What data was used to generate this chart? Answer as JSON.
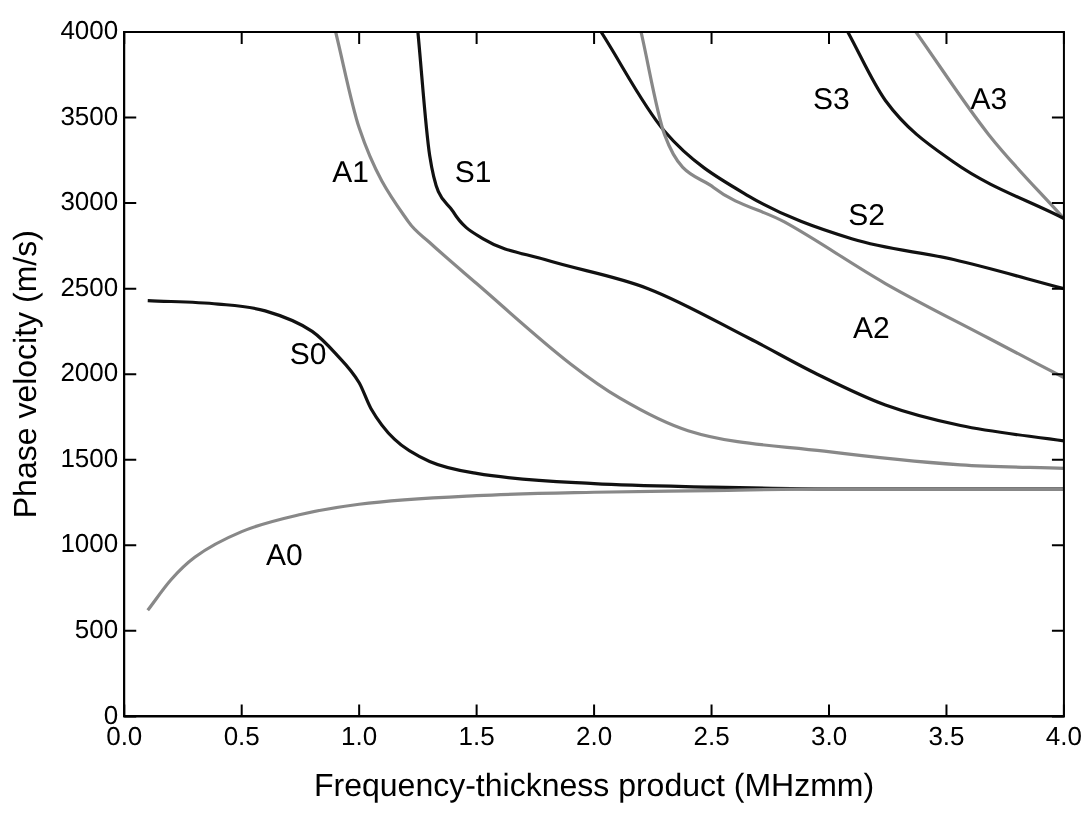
{
  "chart_data": {
    "type": "line",
    "xlabel": "Frequency-thickness product (MHzmm)",
    "ylabel": "Phase velocity (m/s)",
    "xlim": [
      0,
      4
    ],
    "xticks": [
      {
        "value": 0,
        "label": "0.0"
      },
      {
        "value": 0.5,
        "label": "0.5"
      },
      {
        "value": 1,
        "label": "1.0"
      },
      {
        "value": 1.5,
        "label": "1.5"
      },
      {
        "value": 2,
        "label": "2.0"
      },
      {
        "value": 2.5,
        "label": "2.5"
      },
      {
        "value": 3,
        "label": "3.0"
      },
      {
        "value": 3.5,
        "label": "3.5"
      },
      {
        "value": 4,
        "label": "4.0"
      }
    ],
    "ylim": [
      0,
      4000
    ],
    "yticks": [
      0,
      500,
      1000,
      1500,
      2000,
      2500,
      3000,
      3500,
      4000
    ],
    "grid": false,
    "legend": false,
    "marker": "none",
    "line_style": "solid",
    "series": [
      {
        "name": "A0",
        "color": "#888888",
        "x": [
          0.1,
          0.2,
          0.3,
          0.5,
          0.75,
          1,
          1.5,
          2,
          2.5,
          3,
          4
        ],
        "values": [
          620,
          800,
          930,
          1080,
          1180,
          1240,
          1290,
          1310,
          1320,
          1330,
          1330
        ]
      },
      {
        "name": "S0",
        "color": "#111111",
        "x": [
          0.1,
          0.4,
          0.6,
          0.8,
          0.9,
          1.0,
          1.05,
          1.15,
          1.3,
          1.5,
          2,
          2.5,
          3,
          4
        ],
        "values": [
          2430,
          2410,
          2370,
          2250,
          2120,
          1950,
          1800,
          1620,
          1490,
          1420,
          1360,
          1340,
          1330,
          1330
        ]
      },
      {
        "name": "A1",
        "color": "#888888",
        "x": [
          0.9,
          1.0,
          1.21,
          1.3,
          1.5,
          1.9,
          2.11,
          2.4,
          2.98,
          3.56,
          4
        ],
        "values": [
          4000,
          3440,
          2890,
          2770,
          2530,
          2060,
          1860,
          1670,
          1550,
          1470,
          1450
        ]
      },
      {
        "name": "S1",
        "color": "#111111",
        "x": [
          1.25,
          1.3,
          1.4,
          1.53,
          1.79,
          2.23,
          2.66,
          2.95,
          3.24,
          3.56,
          4
        ],
        "values": [
          4000,
          3280,
          2950,
          2790,
          2670,
          2500,
          2210,
          2000,
          1820,
          1700,
          1610
        ]
      },
      {
        "name": "A2",
        "color": "#888888",
        "x": [
          2.2,
          2.3,
          2.51,
          2.81,
          3.24,
          3.68,
          4
        ],
        "values": [
          4000,
          3400,
          3090,
          2890,
          2530,
          2210,
          1980
        ]
      },
      {
        "name": "S2",
        "color": "#111111",
        "x": [
          2.03,
          2.3,
          2.66,
          3.1,
          3.53,
          4
        ],
        "values": [
          4000,
          3420,
          3040,
          2790,
          2670,
          2500
        ]
      },
      {
        "name": "S3",
        "color": "#111111",
        "x": [
          3.08,
          3.24,
          3.53,
          4
        ],
        "values": [
          4000,
          3600,
          3240,
          2910
        ]
      },
      {
        "name": "A3",
        "color": "#888888",
        "x": [
          3.37,
          3.68,
          4
        ],
        "values": [
          4000,
          3400,
          2910
        ]
      }
    ]
  }
}
